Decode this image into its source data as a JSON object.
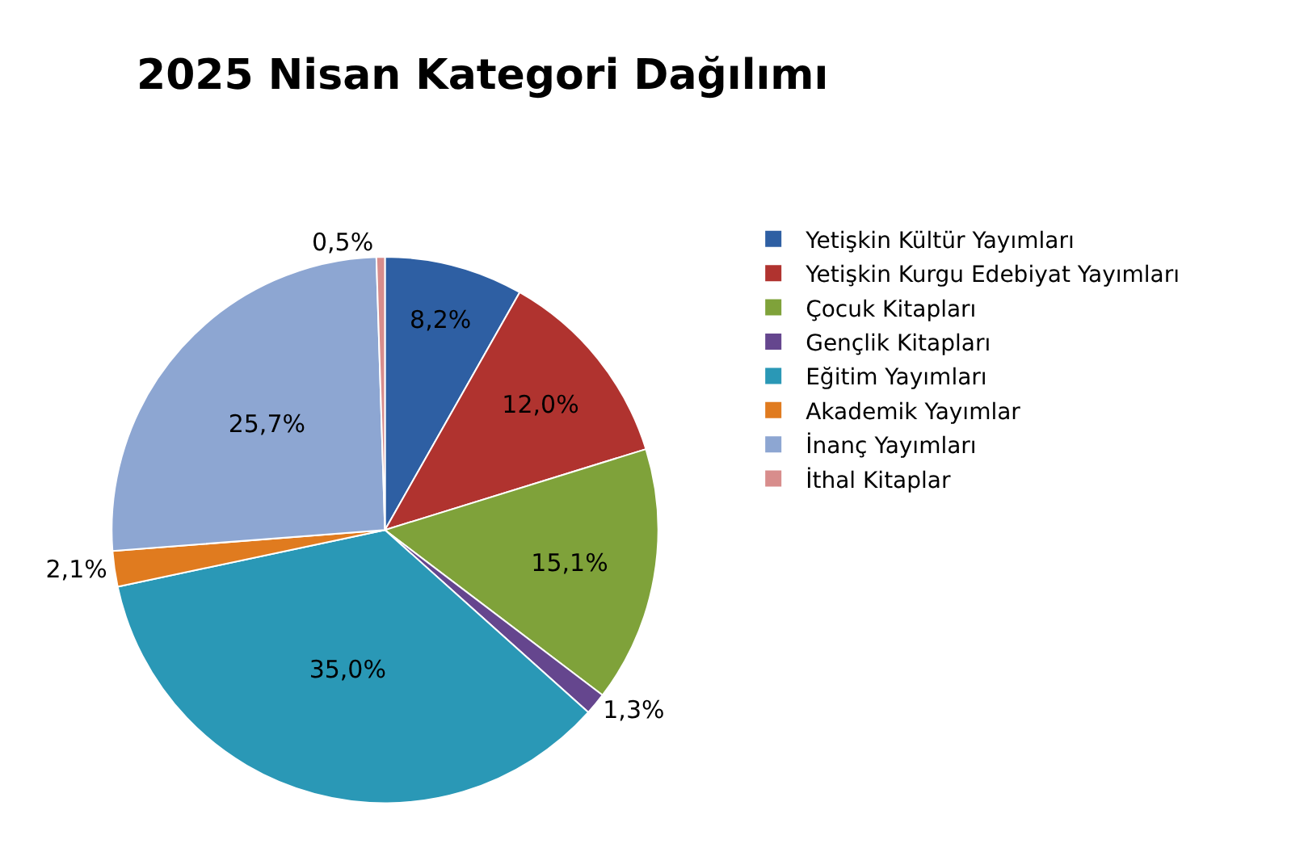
{
  "chart_data": {
    "type": "pie",
    "title": "2025 Nisan Kategori Dağılımı",
    "categories": [
      "Yetişkin Kültür Yayımları",
      "Yetişkin Kurgu Edebiyat Yayımları",
      "Çocuk Kitapları",
      "Gençlik Kitapları",
      "Eğitim Yayımları",
      "Akademik Yayımlar",
      "İnanç Yayımları",
      "İthal Kitaplar"
    ],
    "values": [
      8.2,
      12.0,
      15.1,
      1.3,
      35.0,
      2.1,
      25.7,
      0.5
    ],
    "value_labels": [
      "8,2%",
      "12,0%",
      "15,1%",
      "1,3%",
      "35,0%",
      "2,1%",
      "25,7%",
      "0,5%"
    ],
    "colors": [
      "#2e5fa3",
      "#b0332f",
      "#7fa23a",
      "#65468e",
      "#2a98b6",
      "#e07b1f",
      "#8da6d2",
      "#d88d8c"
    ],
    "legend": "right"
  }
}
